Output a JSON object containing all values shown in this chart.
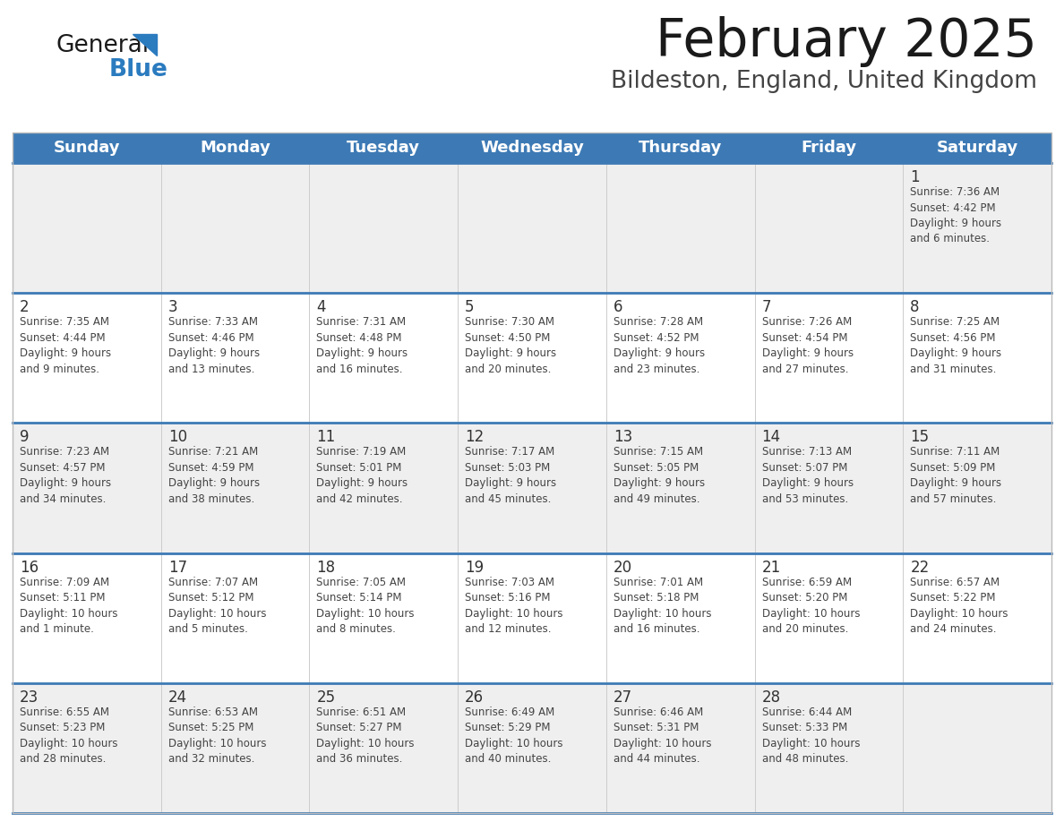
{
  "title": "February 2025",
  "subtitle": "Bildeston, England, United Kingdom",
  "days_of_week": [
    "Sunday",
    "Monday",
    "Tuesday",
    "Wednesday",
    "Thursday",
    "Friday",
    "Saturday"
  ],
  "header_bg": "#3d7ab5",
  "header_text": "#ffffff",
  "row_bg_odd": "#efefef",
  "row_bg_even": "#ffffff",
  "separator_color": "#3d7ab5",
  "text_color": "#444444",
  "day_num_color": "#333333",
  "logo_general_color": "#1a1a1a",
  "logo_blue_color": "#2b7bbf",
  "title_color": "#1a1a1a",
  "subtitle_color": "#444444",
  "calendar": [
    [
      {
        "day": null,
        "text": ""
      },
      {
        "day": null,
        "text": ""
      },
      {
        "day": null,
        "text": ""
      },
      {
        "day": null,
        "text": ""
      },
      {
        "day": null,
        "text": ""
      },
      {
        "day": null,
        "text": ""
      },
      {
        "day": 1,
        "text": "Sunrise: 7:36 AM\nSunset: 4:42 PM\nDaylight: 9 hours\nand 6 minutes."
      }
    ],
    [
      {
        "day": 2,
        "text": "Sunrise: 7:35 AM\nSunset: 4:44 PM\nDaylight: 9 hours\nand 9 minutes."
      },
      {
        "day": 3,
        "text": "Sunrise: 7:33 AM\nSunset: 4:46 PM\nDaylight: 9 hours\nand 13 minutes."
      },
      {
        "day": 4,
        "text": "Sunrise: 7:31 AM\nSunset: 4:48 PM\nDaylight: 9 hours\nand 16 minutes."
      },
      {
        "day": 5,
        "text": "Sunrise: 7:30 AM\nSunset: 4:50 PM\nDaylight: 9 hours\nand 20 minutes."
      },
      {
        "day": 6,
        "text": "Sunrise: 7:28 AM\nSunset: 4:52 PM\nDaylight: 9 hours\nand 23 minutes."
      },
      {
        "day": 7,
        "text": "Sunrise: 7:26 AM\nSunset: 4:54 PM\nDaylight: 9 hours\nand 27 minutes."
      },
      {
        "day": 8,
        "text": "Sunrise: 7:25 AM\nSunset: 4:56 PM\nDaylight: 9 hours\nand 31 minutes."
      }
    ],
    [
      {
        "day": 9,
        "text": "Sunrise: 7:23 AM\nSunset: 4:57 PM\nDaylight: 9 hours\nand 34 minutes."
      },
      {
        "day": 10,
        "text": "Sunrise: 7:21 AM\nSunset: 4:59 PM\nDaylight: 9 hours\nand 38 minutes."
      },
      {
        "day": 11,
        "text": "Sunrise: 7:19 AM\nSunset: 5:01 PM\nDaylight: 9 hours\nand 42 minutes."
      },
      {
        "day": 12,
        "text": "Sunrise: 7:17 AM\nSunset: 5:03 PM\nDaylight: 9 hours\nand 45 minutes."
      },
      {
        "day": 13,
        "text": "Sunrise: 7:15 AM\nSunset: 5:05 PM\nDaylight: 9 hours\nand 49 minutes."
      },
      {
        "day": 14,
        "text": "Sunrise: 7:13 AM\nSunset: 5:07 PM\nDaylight: 9 hours\nand 53 minutes."
      },
      {
        "day": 15,
        "text": "Sunrise: 7:11 AM\nSunset: 5:09 PM\nDaylight: 9 hours\nand 57 minutes."
      }
    ],
    [
      {
        "day": 16,
        "text": "Sunrise: 7:09 AM\nSunset: 5:11 PM\nDaylight: 10 hours\nand 1 minute."
      },
      {
        "day": 17,
        "text": "Sunrise: 7:07 AM\nSunset: 5:12 PM\nDaylight: 10 hours\nand 5 minutes."
      },
      {
        "day": 18,
        "text": "Sunrise: 7:05 AM\nSunset: 5:14 PM\nDaylight: 10 hours\nand 8 minutes."
      },
      {
        "day": 19,
        "text": "Sunrise: 7:03 AM\nSunset: 5:16 PM\nDaylight: 10 hours\nand 12 minutes."
      },
      {
        "day": 20,
        "text": "Sunrise: 7:01 AM\nSunset: 5:18 PM\nDaylight: 10 hours\nand 16 minutes."
      },
      {
        "day": 21,
        "text": "Sunrise: 6:59 AM\nSunset: 5:20 PM\nDaylight: 10 hours\nand 20 minutes."
      },
      {
        "day": 22,
        "text": "Sunrise: 6:57 AM\nSunset: 5:22 PM\nDaylight: 10 hours\nand 24 minutes."
      }
    ],
    [
      {
        "day": 23,
        "text": "Sunrise: 6:55 AM\nSunset: 5:23 PM\nDaylight: 10 hours\nand 28 minutes."
      },
      {
        "day": 24,
        "text": "Sunrise: 6:53 AM\nSunset: 5:25 PM\nDaylight: 10 hours\nand 32 minutes."
      },
      {
        "day": 25,
        "text": "Sunrise: 6:51 AM\nSunset: 5:27 PM\nDaylight: 10 hours\nand 36 minutes."
      },
      {
        "day": 26,
        "text": "Sunrise: 6:49 AM\nSunset: 5:29 PM\nDaylight: 10 hours\nand 40 minutes."
      },
      {
        "day": 27,
        "text": "Sunrise: 6:46 AM\nSunset: 5:31 PM\nDaylight: 10 hours\nand 44 minutes."
      },
      {
        "day": 28,
        "text": "Sunrise: 6:44 AM\nSunset: 5:33 PM\nDaylight: 10 hours\nand 48 minutes."
      },
      {
        "day": null,
        "text": ""
      }
    ]
  ],
  "fig_width": 11.88,
  "fig_height": 9.18,
  "dpi": 100
}
